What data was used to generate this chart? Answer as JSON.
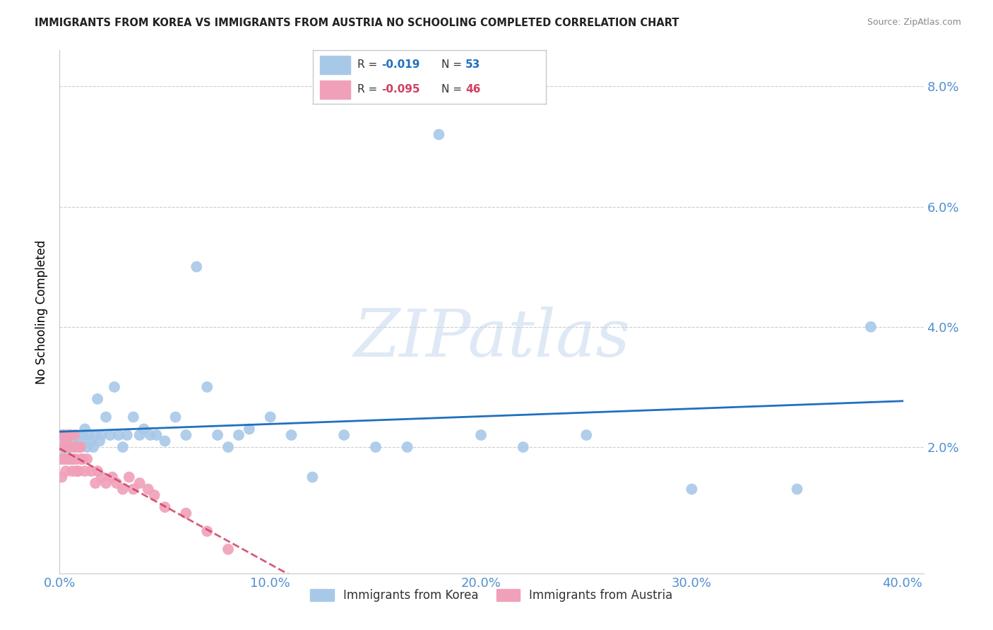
{
  "title": "IMMIGRANTS FROM KOREA VS IMMIGRANTS FROM AUSTRIA NO SCHOOLING COMPLETED CORRELATION CHART",
  "source": "Source: ZipAtlas.com",
  "ylabel": "No Schooling Completed",
  "xlim": [
    0.0,
    0.41
  ],
  "ylim": [
    -0.001,
    0.086
  ],
  "x_tick_vals": [
    0.0,
    0.1,
    0.2,
    0.3,
    0.4
  ],
  "x_tick_labels": [
    "0.0%",
    "10.0%",
    "20.0%",
    "30.0%",
    "40.0%"
  ],
  "y_tick_vals": [
    0.02,
    0.04,
    0.06,
    0.08
  ],
  "y_tick_labels": [
    "2.0%",
    "4.0%",
    "6.0%",
    "8.0%"
  ],
  "korea_R": "-0.019",
  "korea_N": "53",
  "austria_R": "-0.095",
  "austria_N": "46",
  "korea_color": "#a8c8e8",
  "austria_color": "#f0a0b8",
  "korea_line_color": "#2070c0",
  "austria_line_color": "#d04060",
  "watermark": "ZIPatlas",
  "grid_color": "#c8c8c8",
  "tick_label_color": "#5090d0",
  "legend_text_korea": "Immigrants from Korea",
  "legend_text_austria": "Immigrants from Austria",
  "korea_scatter_x": [
    0.001,
    0.002,
    0.003,
    0.004,
    0.005,
    0.006,
    0.007,
    0.008,
    0.009,
    0.01,
    0.011,
    0.012,
    0.013,
    0.014,
    0.015,
    0.016,
    0.017,
    0.018,
    0.019,
    0.02,
    0.022,
    0.024,
    0.026,
    0.028,
    0.03,
    0.032,
    0.035,
    0.038,
    0.04,
    0.043,
    0.046,
    0.05,
    0.055,
    0.06,
    0.065,
    0.07,
    0.075,
    0.08,
    0.085,
    0.09,
    0.1,
    0.11,
    0.12,
    0.135,
    0.15,
    0.165,
    0.18,
    0.2,
    0.22,
    0.25,
    0.3,
    0.35,
    0.385
  ],
  "korea_scatter_y": [
    0.021,
    0.022,
    0.019,
    0.02,
    0.022,
    0.021,
    0.02,
    0.022,
    0.02,
    0.021,
    0.022,
    0.023,
    0.02,
    0.022,
    0.021,
    0.02,
    0.022,
    0.028,
    0.021,
    0.022,
    0.025,
    0.022,
    0.03,
    0.022,
    0.02,
    0.022,
    0.025,
    0.022,
    0.023,
    0.022,
    0.022,
    0.021,
    0.025,
    0.022,
    0.05,
    0.03,
    0.022,
    0.02,
    0.022,
    0.023,
    0.025,
    0.022,
    0.015,
    0.022,
    0.02,
    0.02,
    0.072,
    0.022,
    0.02,
    0.022,
    0.013,
    0.013,
    0.04
  ],
  "austria_scatter_x": [
    0.001,
    0.001,
    0.001,
    0.002,
    0.002,
    0.002,
    0.003,
    0.003,
    0.003,
    0.004,
    0.004,
    0.004,
    0.005,
    0.005,
    0.005,
    0.006,
    0.006,
    0.007,
    0.007,
    0.007,
    0.008,
    0.008,
    0.009,
    0.009,
    0.01,
    0.01,
    0.011,
    0.012,
    0.013,
    0.015,
    0.017,
    0.018,
    0.02,
    0.022,
    0.025,
    0.027,
    0.03,
    0.033,
    0.035,
    0.038,
    0.042,
    0.045,
    0.05,
    0.06,
    0.07,
    0.08
  ],
  "austria_scatter_y": [
    0.022,
    0.018,
    0.015,
    0.02,
    0.018,
    0.022,
    0.021,
    0.018,
    0.016,
    0.018,
    0.022,
    0.02,
    0.018,
    0.022,
    0.02,
    0.018,
    0.016,
    0.02,
    0.018,
    0.022,
    0.018,
    0.016,
    0.02,
    0.016,
    0.018,
    0.02,
    0.018,
    0.016,
    0.018,
    0.016,
    0.014,
    0.016,
    0.015,
    0.014,
    0.015,
    0.014,
    0.013,
    0.015,
    0.013,
    0.014,
    0.013,
    0.012,
    0.01,
    0.009,
    0.006,
    0.003
  ]
}
